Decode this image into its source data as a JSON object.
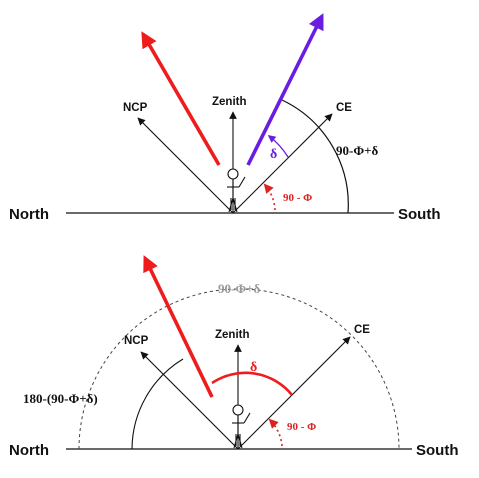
{
  "colors": {
    "red_arrow": "#ee1c1c",
    "purple_arrow": "#6a1de0",
    "red_text": "#dd2222",
    "purple_text": "#6a1de0",
    "gray_text": "#999999",
    "black": "#111111",
    "light_arc": "#aaaaaa"
  },
  "top_panel": {
    "north": "North",
    "south": "South",
    "ncp": "NCP",
    "zenith": "Zenith",
    "ce": "CE",
    "delta": "δ",
    "declination_arc": "90-Φ+δ",
    "latitude_angle": "90 - Φ"
  },
  "bottom_panel": {
    "north": "North",
    "south": "South",
    "ncp": "NCP",
    "zenith": "Zenith",
    "ce": "CE",
    "delta": "δ",
    "dashed_arc_label": "90-Φ+δ",
    "supplement_arc": "180-(90-Φ+δ)",
    "latitude_angle": "90 - Φ"
  }
}
